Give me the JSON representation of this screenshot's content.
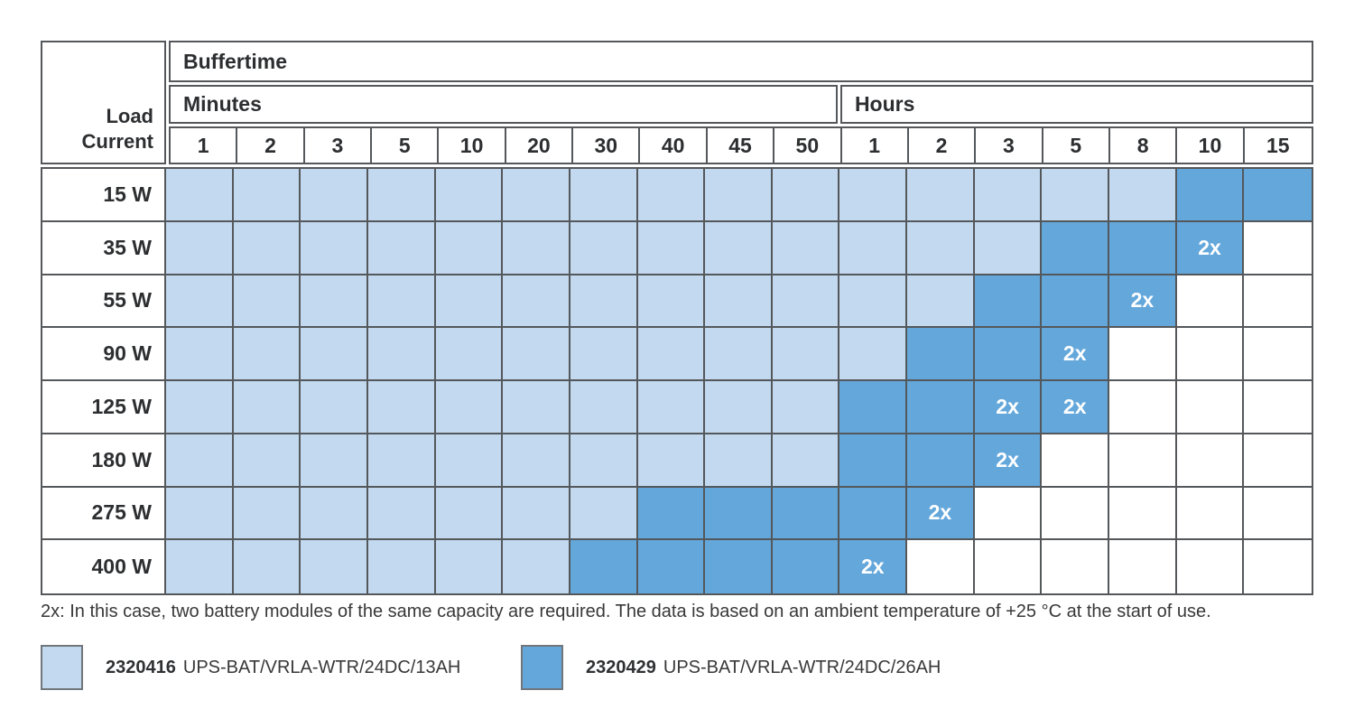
{
  "chart_data": {
    "type": "heatmap",
    "title": "Buffertime",
    "row_header": [
      "Load",
      "Current"
    ],
    "marker_label": "2x",
    "col_groups": [
      {
        "label": "Minutes",
        "cols": [
          "1",
          "2",
          "3",
          "5",
          "10",
          "20",
          "30",
          "40",
          "45",
          "50"
        ]
      },
      {
        "label": "Hours",
        "cols": [
          "1",
          "2",
          "3",
          "5",
          "8",
          "10",
          "15"
        ]
      }
    ],
    "value_meaning": {
      "13AH": "battery module 2320416 (24DC/13AH)",
      "26AH": "battery module 2320429 (24DC/26AH)",
      "26AH_2x": "two battery modules 2320429 (24DC/26AH) required"
    },
    "rows": [
      {
        "load": "15 W",
        "cells": [
          "13AH",
          "13AH",
          "13AH",
          "13AH",
          "13AH",
          "13AH",
          "13AH",
          "13AH",
          "13AH",
          "13AH",
          "13AH",
          "13AH",
          "13AH",
          "13AH",
          "13AH",
          "26AH",
          "26AH"
        ]
      },
      {
        "load": "35 W",
        "cells": [
          "13AH",
          "13AH",
          "13AH",
          "13AH",
          "13AH",
          "13AH",
          "13AH",
          "13AH",
          "13AH",
          "13AH",
          "13AH",
          "13AH",
          "13AH",
          "26AH",
          "26AH",
          "26AH_2x",
          null
        ]
      },
      {
        "load": "55 W",
        "cells": [
          "13AH",
          "13AH",
          "13AH",
          "13AH",
          "13AH",
          "13AH",
          "13AH",
          "13AH",
          "13AH",
          "13AH",
          "13AH",
          "13AH",
          "26AH",
          "26AH",
          "26AH_2x",
          null,
          null
        ]
      },
      {
        "load": "90 W",
        "cells": [
          "13AH",
          "13AH",
          "13AH",
          "13AH",
          "13AH",
          "13AH",
          "13AH",
          "13AH",
          "13AH",
          "13AH",
          "13AH",
          "26AH",
          "26AH",
          "26AH_2x",
          null,
          null,
          null
        ]
      },
      {
        "load": "125 W",
        "cells": [
          "13AH",
          "13AH",
          "13AH",
          "13AH",
          "13AH",
          "13AH",
          "13AH",
          "13AH",
          "13AH",
          "13AH",
          "26AH",
          "26AH",
          "26AH_2x",
          "26AH_2x",
          null,
          null,
          null
        ]
      },
      {
        "load": "180 W",
        "cells": [
          "13AH",
          "13AH",
          "13AH",
          "13AH",
          "13AH",
          "13AH",
          "13AH",
          "13AH",
          "13AH",
          "13AH",
          "26AH",
          "26AH",
          "26AH_2x",
          null,
          null,
          null,
          null
        ]
      },
      {
        "load": "275 W",
        "cells": [
          "13AH",
          "13AH",
          "13AH",
          "13AH",
          "13AH",
          "13AH",
          "13AH",
          "26AH",
          "26AH",
          "26AH",
          "26AH",
          "26AH_2x",
          null,
          null,
          null,
          null,
          null
        ]
      },
      {
        "load": "400 W",
        "cells": [
          "13AH",
          "13AH",
          "13AH",
          "13AH",
          "13AH",
          "13AH",
          "26AH",
          "26AH",
          "26AH",
          "26AH",
          "26AH_2x",
          null,
          null,
          null,
          null,
          null,
          null
        ]
      }
    ]
  },
  "footnote": "2x: In this case, two battery modules of the same capacity are required. The data is based on an ambient temperature of +25 °C at the start of use.",
  "legend": [
    {
      "code": "2320416",
      "label": "UPS-BAT/VRLA-WTR/24DC/13AH",
      "color": "#C2D9EF",
      "cell_value": "13AH"
    },
    {
      "code": "2320429",
      "label": "UPS-BAT/VRLA-WTR/24DC/26AH",
      "color": "#63A7DB",
      "cell_value": "26AH"
    }
  ],
  "colors": {
    "light": "#C2D9EF",
    "dark": "#63A7DB",
    "grid": "#54585B",
    "marker_text": "#FFFFFF"
  }
}
